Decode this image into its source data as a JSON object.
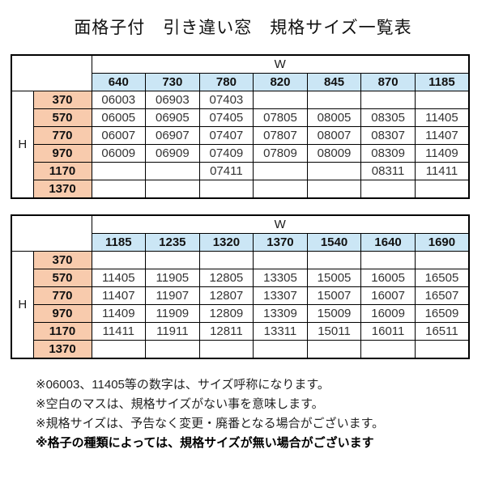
{
  "title": "面格子付　引き違い窓　規格サイズ一覧表",
  "tables": [
    {
      "w_label": "W",
      "h_label": "H",
      "columns": [
        "640",
        "730",
        "780",
        "820",
        "845",
        "870",
        "1185"
      ],
      "rows": [
        {
          "h": "370",
          "cells": [
            "06003",
            "06903",
            "07403",
            "",
            "",
            "",
            ""
          ]
        },
        {
          "h": "570",
          "cells": [
            "06005",
            "06905",
            "07405",
            "07805",
            "08005",
            "08305",
            "11405"
          ]
        },
        {
          "h": "770",
          "cells": [
            "06007",
            "06907",
            "07407",
            "07807",
            "08007",
            "08307",
            "11407"
          ]
        },
        {
          "h": "970",
          "cells": [
            "06009",
            "06909",
            "07409",
            "07809",
            "08009",
            "08309",
            "11409"
          ]
        },
        {
          "h": "1170",
          "cells": [
            "",
            "",
            "07411",
            "",
            "",
            "08311",
            "11411"
          ]
        },
        {
          "h": "1370",
          "cells": [
            "",
            "",
            "",
            "",
            "",
            "",
            ""
          ]
        }
      ]
    },
    {
      "w_label": "W",
      "h_label": "H",
      "columns": [
        "1185",
        "1235",
        "1320",
        "1370",
        "1540",
        "1640",
        "1690"
      ],
      "rows": [
        {
          "h": "370",
          "cells": [
            "",
            "",
            "",
            "",
            "",
            "",
            ""
          ]
        },
        {
          "h": "570",
          "cells": [
            "11405",
            "11905",
            "12805",
            "13305",
            "15005",
            "16005",
            "16505"
          ]
        },
        {
          "h": "770",
          "cells": [
            "11407",
            "11907",
            "12807",
            "13307",
            "15007",
            "16007",
            "16507"
          ]
        },
        {
          "h": "970",
          "cells": [
            "11409",
            "11909",
            "12809",
            "13309",
            "15009",
            "16009",
            "16509"
          ]
        },
        {
          "h": "1170",
          "cells": [
            "11411",
            "11911",
            "12811",
            "13311",
            "15011",
            "16011",
            "16511"
          ]
        },
        {
          "h": "1370",
          "cells": [
            "",
            "",
            "",
            "",
            "",
            "",
            ""
          ]
        }
      ]
    }
  ],
  "notes": [
    {
      "text": "※06003、11405等の数字は、サイズ呼称になります。",
      "bold": false
    },
    {
      "text": "※空白のマスは、規格サイズがない事を意味します。",
      "bold": false
    },
    {
      "text": "※規格サイズは、予告なく変更・廃番となる場合がございます。",
      "bold": false
    },
    {
      "text": "※格子の種類によっては、規格サイズが無い場合がございます",
      "bold": true
    }
  ],
  "colors": {
    "header_blue": "#cbe6f5",
    "row_salmon": "#f8cbad",
    "border": "#000000"
  }
}
